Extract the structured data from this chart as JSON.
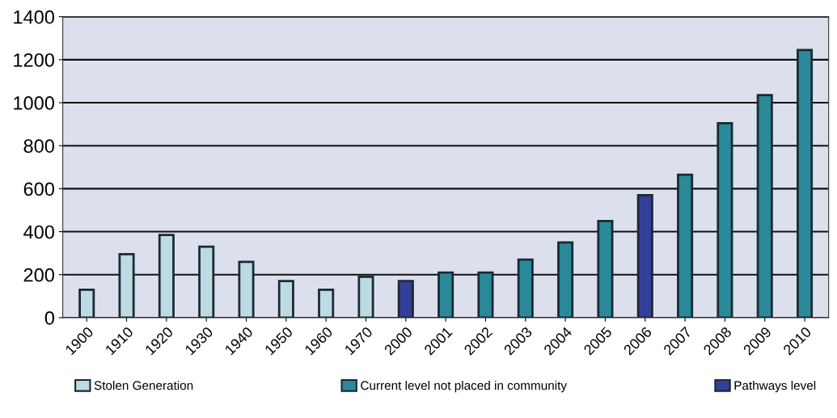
{
  "chart_data": {
    "type": "bar",
    "categories": [
      "1900",
      "1910",
      "1920",
      "1930",
      "1940",
      "1950",
      "1960",
      "1970",
      "2000",
      "2001",
      "2002",
      "2003",
      "2004",
      "2005",
      "2006",
      "2007",
      "2008",
      "2009",
      "2010"
    ],
    "series": [
      {
        "name": "Stolen Generation",
        "color": "#bcdbe4",
        "values": [
          130,
          295,
          385,
          330,
          260,
          170,
          130,
          190,
          null,
          null,
          null,
          null,
          null,
          null,
          null,
          null,
          null,
          null,
          null
        ]
      },
      {
        "name": "Current level not placed in community",
        "color": "#2a8a99",
        "values": [
          null,
          null,
          null,
          null,
          null,
          null,
          null,
          null,
          null,
          210,
          210,
          270,
          350,
          450,
          null,
          665,
          905,
          1035,
          1245
        ]
      },
      {
        "name": "Pathways level",
        "color": "#33409a",
        "values": [
          null,
          null,
          null,
          null,
          null,
          null,
          null,
          null,
          170,
          null,
          null,
          null,
          null,
          null,
          570,
          null,
          null,
          null,
          null
        ]
      }
    ],
    "ylim": [
      0,
      1400
    ],
    "yticks": [
      0,
      200,
      400,
      600,
      800,
      1000,
      1200,
      1400
    ],
    "grid": "y",
    "legend": "bottom"
  }
}
